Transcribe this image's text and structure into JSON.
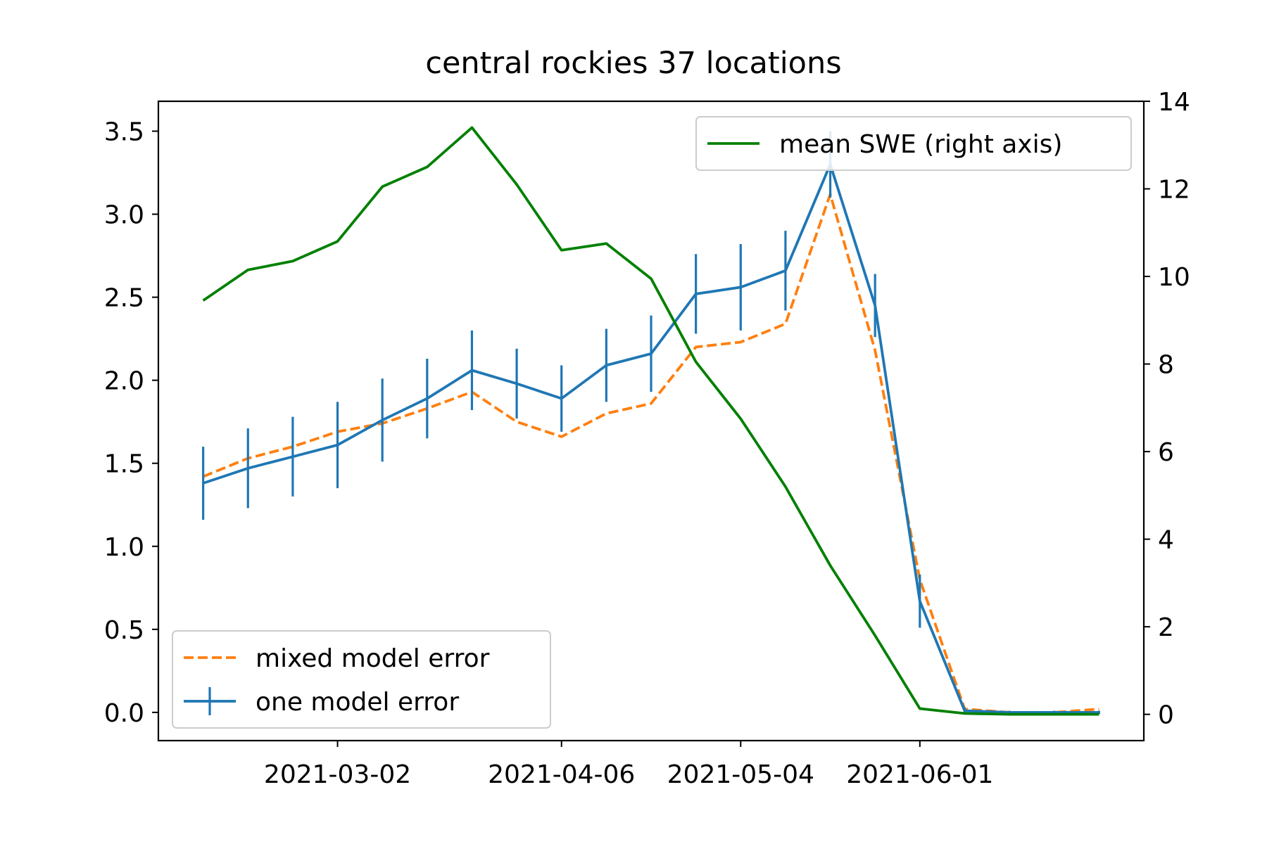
{
  "chart_data": {
    "type": "line",
    "title": "central rockies 37 locations",
    "xlabel": "",
    "ylabel": "",
    "y2label": "",
    "x_ticks": [
      "2021-03-02",
      "2021-04-06",
      "2021-05-04",
      "2021-06-01"
    ],
    "x": [
      "2021-02-09",
      "2021-02-16",
      "2021-02-23",
      "2021-03-02",
      "2021-03-09",
      "2021-03-16",
      "2021-03-23",
      "2021-03-30",
      "2021-04-06",
      "2021-04-13",
      "2021-04-20",
      "2021-04-27",
      "2021-05-04",
      "2021-05-11",
      "2021-05-18",
      "2021-05-25",
      "2021-06-01",
      "2021-06-08",
      "2021-06-15",
      "2021-06-22",
      "2021-06-29"
    ],
    "ylim": [
      -0.17,
      3.68
    ],
    "y_ticks": [
      0.0,
      0.5,
      1.0,
      1.5,
      2.0,
      2.5,
      3.0,
      3.5
    ],
    "y2lim": [
      -0.6,
      14.0
    ],
    "y2_ticks": [
      0,
      2,
      4,
      6,
      8,
      10,
      12,
      14
    ],
    "grid": false,
    "series": [
      {
        "name": "mixed model error",
        "axis": "left",
        "color": "#ff7f0e",
        "style": "dashed",
        "values": [
          1.42,
          1.53,
          1.6,
          1.69,
          1.74,
          1.83,
          1.93,
          1.75,
          1.66,
          1.8,
          1.86,
          2.2,
          2.23,
          2.34,
          3.12,
          2.18,
          0.8,
          0.02,
          0.0,
          0.0,
          0.02
        ]
      },
      {
        "name": "one model error",
        "axis": "left",
        "color": "#1f77b4",
        "style": "solid",
        "values": [
          1.38,
          1.47,
          1.54,
          1.61,
          1.76,
          1.89,
          2.06,
          1.98,
          1.89,
          2.09,
          2.16,
          2.52,
          2.56,
          2.66,
          3.3,
          2.45,
          0.67,
          0.01,
          0.0,
          0.0,
          0.0
        ],
        "error": [
          0.22,
          0.24,
          0.24,
          0.26,
          0.25,
          0.24,
          0.24,
          0.21,
          0.2,
          0.22,
          0.23,
          0.24,
          0.26,
          0.24,
          0.2,
          0.19,
          0.16,
          0.02,
          0.01,
          0.01,
          0.01
        ]
      },
      {
        "name": "mean SWE (right axis)",
        "axis": "right",
        "color": "#008000",
        "style": "solid",
        "values": [
          9.45,
          10.15,
          10.35,
          10.8,
          12.05,
          12.5,
          13.4,
          12.1,
          10.6,
          10.75,
          9.95,
          8.05,
          6.75,
          5.2,
          3.4,
          1.8,
          0.13,
          0.02,
          0.0,
          0.0,
          0.0
        ]
      }
    ],
    "legend_left": {
      "placement": "lower-left",
      "entries": [
        "mixed model error",
        "one model error"
      ]
    },
    "legend_right": {
      "placement": "upper-right",
      "entries": [
        "mean SWE (right axis)"
      ]
    }
  }
}
